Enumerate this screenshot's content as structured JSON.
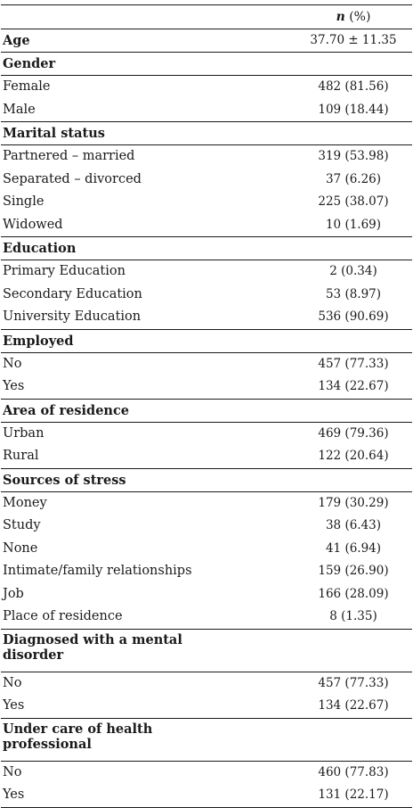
{
  "header": {
    "n_label": "n",
    "pct_label": "(%)"
  },
  "age": {
    "label": "Age",
    "value": "37.70 ± 11.35"
  },
  "gender": {
    "label": "Gender",
    "rows": [
      {
        "label": "Female",
        "value": "482 (81.56)"
      },
      {
        "label": "Male",
        "value": "109 (18.44)"
      }
    ]
  },
  "marital": {
    "label": "Marital status",
    "rows": [
      {
        "label": "Partnered – married",
        "value": "319 (53.98)"
      },
      {
        "label": "Separated – divorced",
        "value": "37 (6.26)"
      },
      {
        "label": "Single",
        "value": "225 (38.07)"
      },
      {
        "label": "Widowed",
        "value": "10 (1.69)"
      }
    ]
  },
  "education": {
    "label": "Education",
    "rows": [
      {
        "label": "Primary Education",
        "value": "2 (0.34)"
      },
      {
        "label": "Secondary Education",
        "value": "53 (8.97)"
      },
      {
        "label": "University Education",
        "value": "536 (90.69)"
      }
    ]
  },
  "employed": {
    "label": "Employed",
    "rows": [
      {
        "label": "No",
        "value": "457 (77.33)"
      },
      {
        "label": "Yes",
        "value": "134 (22.67)"
      }
    ]
  },
  "residence": {
    "label": "Area of residence",
    "rows": [
      {
        "label": "Urban",
        "value": "469 (79.36)"
      },
      {
        "label": "Rural",
        "value": "122 (20.64)"
      }
    ]
  },
  "stress": {
    "label": "Sources of stress",
    "rows": [
      {
        "label": "Money",
        "value": "179 (30.29)"
      },
      {
        "label": "Study",
        "value": "38 (6.43)"
      },
      {
        "label": "None",
        "value": "41 (6.94)"
      },
      {
        "label": "Intimate/family relationships",
        "value": "159 (26.90)"
      },
      {
        "label": "Job",
        "value": "166 (28.09)"
      },
      {
        "label": "Place of residence",
        "value": "8 (1.35)"
      }
    ]
  },
  "mental": {
    "label": "Diagnosed with a mental disorder",
    "rows": [
      {
        "label": "No",
        "value": "457 (77.33)"
      },
      {
        "label": "Yes",
        "value": "134 (22.67)"
      }
    ]
  },
  "care": {
    "label": "Under care of health professional",
    "rows": [
      {
        "label": "No",
        "value": "460 (77.83)"
      },
      {
        "label": "Yes",
        "value": "131 (22.17)"
      }
    ]
  }
}
